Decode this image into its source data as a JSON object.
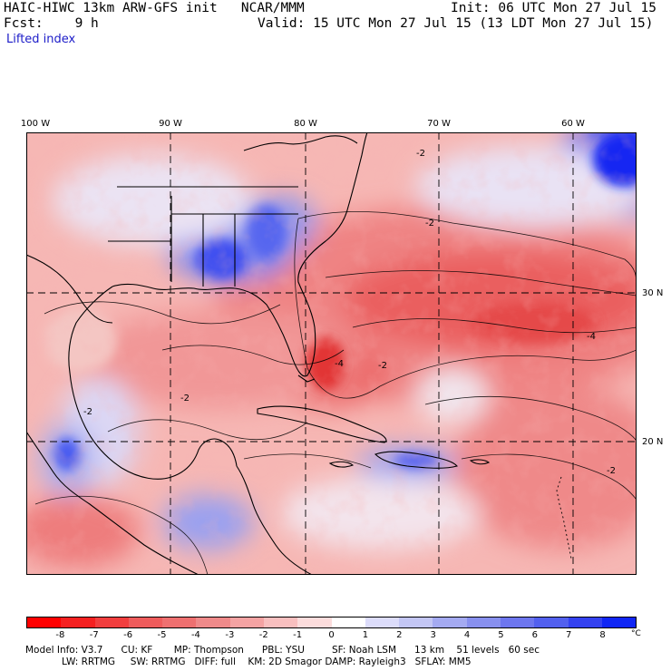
{
  "header": {
    "title": "HAIC-HIWC 13km ARW-GFS init   NCAR/MMM",
    "init": "Init: 06 UTC Mon 27 Jul 15",
    "fcst": "Fcst:    9 h",
    "valid": "Valid: 15 UTC Mon 27 Jul 15 (13 LDT Mon 27 Jul 15)",
    "field": "Lifted index"
  },
  "map": {
    "lon_labels": [
      "100 W",
      "90 W",
      "80 W",
      "70 W",
      "60 W"
    ],
    "lat_labels": [
      "30 N",
      "20 N"
    ],
    "contour_labels": [
      "-2",
      "-2",
      "-2",
      "-2",
      "-2",
      "-2",
      "-4",
      "-4"
    ],
    "colors": {
      "neg8": "#ff1a1a",
      "neg6": "#f14a4a",
      "neg4": "#ee7d7d",
      "neg2": "#f7aaa6",
      "neg1": "#fbd5d2",
      "zero": "#ffffff",
      "pos2": "#b4b9f2",
      "pos4": "#7d85ee",
      "pos6": "#4b57ef",
      "pos8": "#1020f2"
    }
  },
  "colorbar": {
    "ticks": [
      "-8",
      "-7",
      "-6",
      "-5",
      "-4",
      "-3",
      "-2",
      "-1",
      "0",
      "1",
      "2",
      "3",
      "4",
      "5",
      "6",
      "7",
      "8"
    ],
    "unit": "°C",
    "swatches": [
      "#ff0000",
      "#f52020",
      "#f13e3e",
      "#ee5c5c",
      "#ee7070",
      "#ef8a8a",
      "#f4a3a3",
      "#f8bfbf",
      "#fcdcdc",
      "#ffffff",
      "#dcdcfa",
      "#c3c6f4",
      "#a4aaf1",
      "#8890ee",
      "#6d76ee",
      "#5260ee",
      "#3442f0",
      "#1026f4"
    ]
  },
  "footer": {
    "line1": "Model Info: V3.7      CU: KF       MP: Thompson      PBL: YSU         SF: Noah LSM      13 km    51 levels   60 sec",
    "line2": "            LW: RRTMG     SW: RRTMG   DIFF: full    KM: 2D Smagor DAMP: Rayleigh3   SFLAY: MM5"
  }
}
